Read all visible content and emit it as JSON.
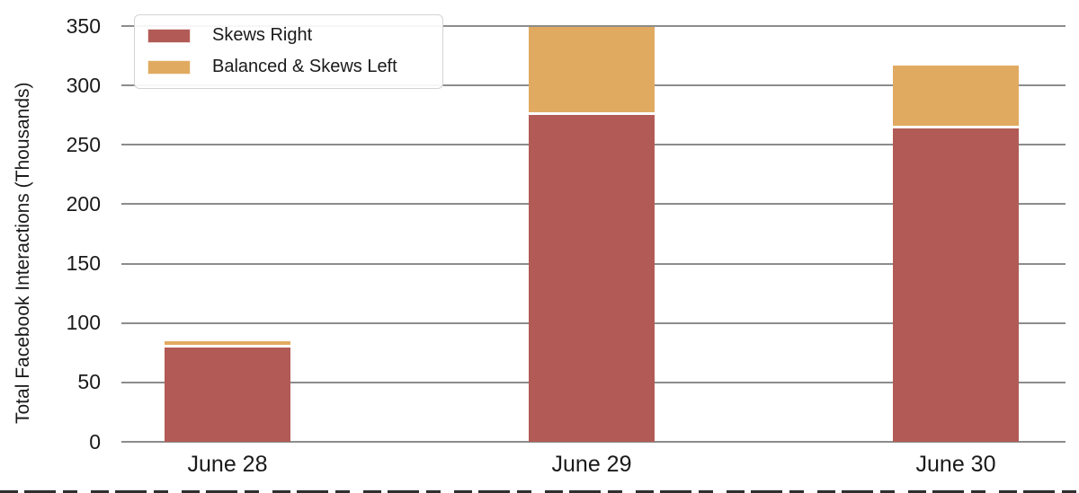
{
  "figure": {
    "title": "",
    "ylabel": "Total Facebook Interactions (Thousands)",
    "xlabel": ""
  },
  "legend": {
    "items": [
      {
        "label": "Skews Right",
        "color": "#b25b56"
      },
      {
        "label": "Balanced & Skews Left",
        "color": "#e1aa61"
      }
    ]
  },
  "chart_data": {
    "type": "bar",
    "stacked": true,
    "categories": [
      "June 28",
      "June 29",
      "June 30"
    ],
    "series": [
      {
        "name": "Skews Right",
        "color": "#b25b56",
        "values": [
          79,
          275,
          264
        ]
      },
      {
        "name": "Balanced & Skews Left",
        "color": "#e1aa61",
        "values": [
          6,
          74,
          53
        ]
      }
    ],
    "totals": [
      85,
      349,
      317
    ],
    "title": "",
    "xlabel": "",
    "ylabel": "Total Facebook Interactions (Thousands)",
    "ylim": [
      0,
      350
    ],
    "yticks": [
      0,
      50,
      100,
      150,
      200,
      250,
      300,
      350
    ],
    "grid": true,
    "gridline_color": "#8c8c8c",
    "text_color": "#1a1a1a",
    "legend_position": "upper left"
  }
}
